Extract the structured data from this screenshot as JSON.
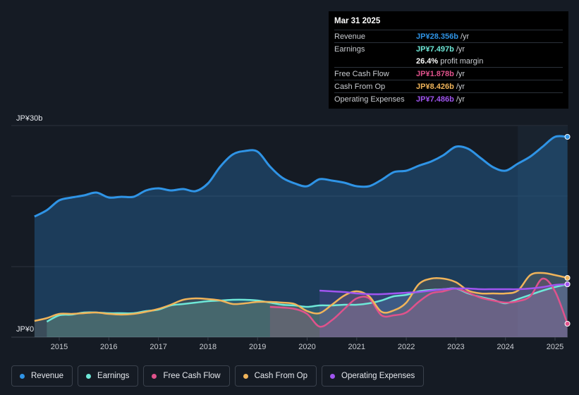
{
  "y_axis": {
    "top_label": "JP¥30b",
    "bottom_label": "JP¥0"
  },
  "tooltip": {
    "date": "Mar 31 2025",
    "rows": [
      {
        "label": "Revenue",
        "value": "JP¥28.356b",
        "unit": "/yr",
        "color": "#2f94e6"
      },
      {
        "label": "Earnings",
        "value": "JP¥7.497b",
        "unit": "/yr",
        "color": "#6ee8d8"
      },
      {
        "label": "",
        "value": "26.4%",
        "unit": "profit margin",
        "color": "#ffffff"
      },
      {
        "label": "Free Cash Flow",
        "value": "JP¥1.878b",
        "unit": "/yr",
        "color": "#e0528c"
      },
      {
        "label": "Cash From Op",
        "value": "JP¥8.426b",
        "unit": "/yr",
        "color": "#f0b45a"
      },
      {
        "label": "Operating Expenses",
        "value": "JP¥7.486b",
        "unit": "/yr",
        "color": "#a055f0"
      }
    ]
  },
  "legend": [
    {
      "label": "Revenue",
      "color": "#2f94e6"
    },
    {
      "label": "Earnings",
      "color": "#6ee8d8"
    },
    {
      "label": "Free Cash Flow",
      "color": "#e0528c"
    },
    {
      "label": "Cash From Op",
      "color": "#f0b45a"
    },
    {
      "label": "Operating Expenses",
      "color": "#a055f0"
    }
  ],
  "chart_data": {
    "type": "area",
    "ylim": [
      0,
      30
    ],
    "y_unit": "JP¥ billions",
    "x_ticks": [
      "2015",
      "2016",
      "2017",
      "2018",
      "2019",
      "2020",
      "2021",
      "2022",
      "2023",
      "2024",
      "2025"
    ],
    "grid": true,
    "forecast_shade_start": 2024.25,
    "series": [
      {
        "name": "Revenue",
        "color": "#2f94e6",
        "points": [
          [
            2014.5,
            17.1
          ],
          [
            2014.75,
            18.0
          ],
          [
            2015.0,
            19.4
          ],
          [
            2015.25,
            19.8
          ],
          [
            2015.5,
            20.1
          ],
          [
            2015.75,
            20.5
          ],
          [
            2016.0,
            19.8
          ],
          [
            2016.25,
            19.9
          ],
          [
            2016.5,
            19.9
          ],
          [
            2016.75,
            20.8
          ],
          [
            2017.0,
            21.1
          ],
          [
            2017.25,
            20.8
          ],
          [
            2017.5,
            21.0
          ],
          [
            2017.75,
            20.7
          ],
          [
            2018.0,
            21.8
          ],
          [
            2018.25,
            24.2
          ],
          [
            2018.5,
            25.9
          ],
          [
            2018.75,
            26.4
          ],
          [
            2019.0,
            26.3
          ],
          [
            2019.25,
            24.2
          ],
          [
            2019.5,
            22.6
          ],
          [
            2019.75,
            21.8
          ],
          [
            2020.0,
            21.4
          ],
          [
            2020.25,
            22.4
          ],
          [
            2020.5,
            22.2
          ],
          [
            2020.75,
            21.9
          ],
          [
            2021.0,
            21.4
          ],
          [
            2021.25,
            21.4
          ],
          [
            2021.5,
            22.3
          ],
          [
            2021.75,
            23.4
          ],
          [
            2022.0,
            23.6
          ],
          [
            2022.25,
            24.3
          ],
          [
            2022.5,
            24.9
          ],
          [
            2022.75,
            25.8
          ],
          [
            2023.0,
            27.0
          ],
          [
            2023.25,
            26.7
          ],
          [
            2023.5,
            25.4
          ],
          [
            2023.75,
            24.1
          ],
          [
            2024.0,
            23.6
          ],
          [
            2024.25,
            24.6
          ],
          [
            2024.5,
            25.6
          ],
          [
            2024.75,
            27.0
          ],
          [
            2025.0,
            28.4
          ],
          [
            2025.25,
            28.4
          ]
        ]
      },
      {
        "name": "Earnings",
        "color": "#6ee8d8",
        "points": [
          [
            2014.75,
            2.2
          ],
          [
            2015.0,
            3.1
          ],
          [
            2015.25,
            3.2
          ],
          [
            2015.5,
            3.5
          ],
          [
            2015.75,
            3.5
          ],
          [
            2016.0,
            3.4
          ],
          [
            2016.25,
            3.4
          ],
          [
            2016.5,
            3.4
          ],
          [
            2016.75,
            3.7
          ],
          [
            2017.0,
            3.9
          ],
          [
            2017.25,
            4.5
          ],
          [
            2017.5,
            4.7
          ],
          [
            2017.75,
            4.9
          ],
          [
            2018.0,
            5.1
          ],
          [
            2018.25,
            5.2
          ],
          [
            2018.5,
            5.3
          ],
          [
            2018.75,
            5.3
          ],
          [
            2019.0,
            5.2
          ],
          [
            2019.25,
            4.9
          ],
          [
            2019.5,
            4.6
          ],
          [
            2019.75,
            4.5
          ],
          [
            2020.0,
            4.3
          ],
          [
            2020.25,
            4.5
          ],
          [
            2020.5,
            4.5
          ],
          [
            2020.75,
            4.6
          ],
          [
            2021.0,
            4.6
          ],
          [
            2021.25,
            4.8
          ],
          [
            2021.5,
            5.2
          ],
          [
            2021.75,
            5.8
          ],
          [
            2022.0,
            6.0
          ],
          [
            2022.25,
            6.5
          ],
          [
            2022.5,
            6.7
          ],
          [
            2022.75,
            6.8
          ],
          [
            2023.0,
            6.9
          ],
          [
            2023.25,
            6.2
          ],
          [
            2023.5,
            5.7
          ],
          [
            2023.75,
            5.3
          ],
          [
            2024.0,
            4.8
          ],
          [
            2024.25,
            5.4
          ],
          [
            2024.5,
            6.0
          ],
          [
            2024.75,
            6.6
          ],
          [
            2025.0,
            7.1
          ],
          [
            2025.25,
            7.5
          ]
        ]
      },
      {
        "name": "Free Cash Flow",
        "color": "#e0528c",
        "points": [
          [
            2019.25,
            4.3
          ],
          [
            2019.5,
            4.2
          ],
          [
            2019.75,
            4.0
          ],
          [
            2020.0,
            3.3
          ],
          [
            2020.25,
            1.5
          ],
          [
            2020.5,
            2.4
          ],
          [
            2020.75,
            4.0
          ],
          [
            2021.0,
            5.5
          ],
          [
            2021.25,
            5.5
          ],
          [
            2021.5,
            3.1
          ],
          [
            2021.75,
            3.1
          ],
          [
            2022.0,
            3.5
          ],
          [
            2022.25,
            5.0
          ],
          [
            2022.5,
            6.2
          ],
          [
            2022.75,
            6.5
          ],
          [
            2023.0,
            6.9
          ],
          [
            2023.25,
            6.3
          ],
          [
            2023.5,
            5.6
          ],
          [
            2023.75,
            5.2
          ],
          [
            2024.0,
            4.9
          ],
          [
            2024.25,
            5.1
          ],
          [
            2024.5,
            5.8
          ],
          [
            2024.75,
            8.3
          ],
          [
            2025.0,
            6.5
          ],
          [
            2025.25,
            1.9
          ]
        ]
      },
      {
        "name": "Cash From Op",
        "color": "#f0b45a",
        "points": [
          [
            2014.5,
            2.3
          ],
          [
            2014.75,
            2.7
          ],
          [
            2015.0,
            3.3
          ],
          [
            2015.25,
            3.3
          ],
          [
            2015.5,
            3.4
          ],
          [
            2015.75,
            3.5
          ],
          [
            2016.0,
            3.3
          ],
          [
            2016.25,
            3.2
          ],
          [
            2016.5,
            3.3
          ],
          [
            2016.75,
            3.6
          ],
          [
            2017.0,
            4.0
          ],
          [
            2017.25,
            4.6
          ],
          [
            2017.5,
            5.3
          ],
          [
            2017.75,
            5.5
          ],
          [
            2018.0,
            5.4
          ],
          [
            2018.25,
            5.2
          ],
          [
            2018.5,
            4.7
          ],
          [
            2018.75,
            4.8
          ],
          [
            2019.0,
            5.0
          ],
          [
            2019.25,
            5.0
          ],
          [
            2019.5,
            4.9
          ],
          [
            2019.75,
            4.7
          ],
          [
            2020.0,
            3.7
          ],
          [
            2020.25,
            3.4
          ],
          [
            2020.5,
            4.6
          ],
          [
            2020.75,
            5.9
          ],
          [
            2021.0,
            6.5
          ],
          [
            2021.25,
            5.8
          ],
          [
            2021.5,
            3.6
          ],
          [
            2021.75,
            3.8
          ],
          [
            2022.0,
            4.9
          ],
          [
            2022.25,
            7.5
          ],
          [
            2022.5,
            8.3
          ],
          [
            2022.75,
            8.3
          ],
          [
            2023.0,
            7.8
          ],
          [
            2023.25,
            6.6
          ],
          [
            2023.5,
            6.2
          ],
          [
            2023.75,
            6.2
          ],
          [
            2024.0,
            6.2
          ],
          [
            2024.25,
            6.6
          ],
          [
            2024.5,
            8.8
          ],
          [
            2024.75,
            9.1
          ],
          [
            2025.0,
            8.8
          ],
          [
            2025.25,
            8.4
          ]
        ]
      },
      {
        "name": "Operating Expenses",
        "color": "#a055f0",
        "points": [
          [
            2020.25,
            6.6
          ],
          [
            2020.5,
            6.5
          ],
          [
            2020.75,
            6.4
          ],
          [
            2021.0,
            6.2
          ],
          [
            2021.25,
            6.1
          ],
          [
            2021.5,
            6.1
          ],
          [
            2021.75,
            6.2
          ],
          [
            2022.0,
            6.3
          ],
          [
            2022.25,
            6.4
          ],
          [
            2022.5,
            6.6
          ],
          [
            2022.75,
            6.8
          ],
          [
            2023.0,
            6.9
          ],
          [
            2023.25,
            6.9
          ],
          [
            2023.5,
            6.8
          ],
          [
            2023.75,
            6.8
          ],
          [
            2024.0,
            6.8
          ],
          [
            2024.25,
            6.8
          ],
          [
            2024.5,
            6.9
          ],
          [
            2024.75,
            7.1
          ],
          [
            2025.0,
            7.4
          ],
          [
            2025.25,
            7.5
          ]
        ]
      }
    ]
  }
}
